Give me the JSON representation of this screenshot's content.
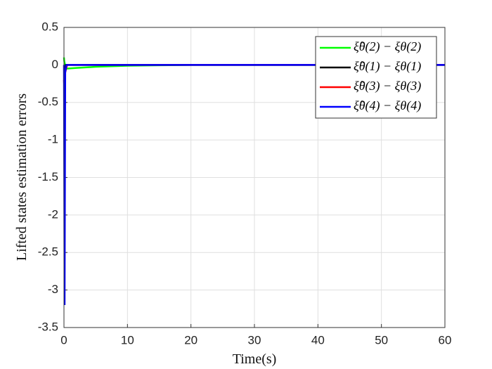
{
  "chart_data": {
    "type": "line",
    "xlabel": "Time(s)",
    "ylabel": "Lifted states estimation errors",
    "xlim": [
      0,
      60
    ],
    "xticks": [
      0,
      10,
      20,
      30,
      40,
      50,
      60
    ],
    "ylim": [
      -3.5,
      0.5
    ],
    "yticks": [
      -3.5,
      -3,
      -2.5,
      -2,
      -1.5,
      -1,
      -0.5,
      0,
      0.5
    ],
    "grid": true,
    "legend": "top-right",
    "series": [
      {
        "name": "ξ̂θ(2) − ξθ(2)",
        "color": "#00ff00",
        "x": [
          0,
          0.05,
          0.3,
          2,
          5,
          10,
          15,
          20,
          60
        ],
        "values": [
          0.1,
          0.05,
          -0.05,
          -0.04,
          -0.025,
          -0.01,
          -0.005,
          0,
          0
        ]
      },
      {
        "name": "ξ̂θ(1) − ξθ(1)",
        "color": "#000000",
        "x": [
          0,
          0.1,
          0.3,
          60
        ],
        "values": [
          -0.1,
          -0.12,
          0,
          0
        ]
      },
      {
        "name": "ξ̂θ(3) − ξθ(3)",
        "color": "#ff0000",
        "x": [
          0,
          0.05,
          0.2,
          0.5,
          60
        ],
        "values": [
          -0.2,
          -0.3,
          -0.1,
          0,
          0
        ]
      },
      {
        "name": "ξ̂θ(4) − ξθ(4)",
        "color": "#0000ff",
        "x": [
          0,
          0.1,
          0.2,
          0.4,
          60
        ],
        "values": [
          0,
          -3.2,
          -0.1,
          0,
          0
        ]
      }
    ]
  }
}
